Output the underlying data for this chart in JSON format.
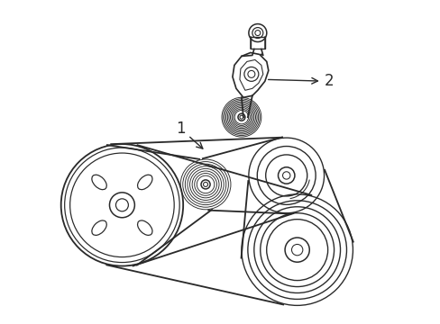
{
  "background_color": "#ffffff",
  "line_color": "#2a2a2a",
  "line_width": 1.1,
  "label_1_text": "1",
  "label_2_text": "2",
  "figsize": [
    4.89,
    3.6
  ],
  "dpi": 100
}
